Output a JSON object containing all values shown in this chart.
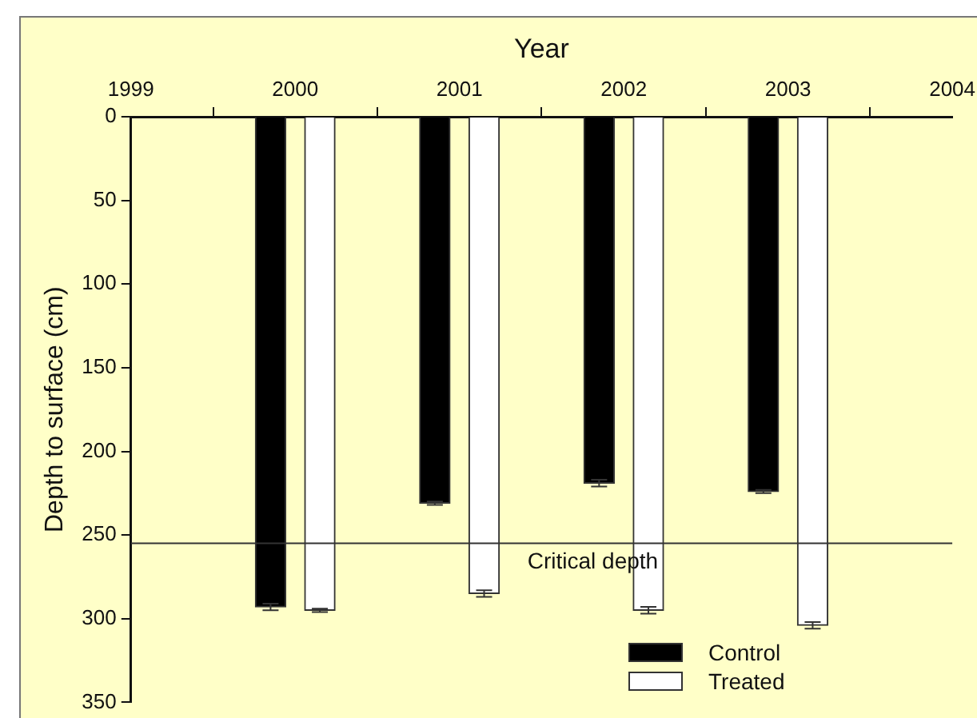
{
  "chart_data": {
    "type": "bar",
    "xlabel": "Year",
    "ylabel": "Depth to surface (cm)",
    "xlim": [
      1999,
      2004
    ],
    "xticks": [
      1999,
      2000,
      2001,
      2002,
      2003,
      2004
    ],
    "ylim": [
      350,
      0
    ],
    "yticks": [
      0,
      50,
      100,
      150,
      200,
      250,
      300,
      350
    ],
    "series": [
      {
        "name": "Control",
        "color": "#000000",
        "x": [
          1999.85,
          2000.85,
          2001.85,
          2002.85
        ],
        "values": [
          293,
          231,
          219,
          224
        ],
        "errors": [
          2,
          1,
          2,
          1
        ]
      },
      {
        "name": "Treated",
        "color": "#ffffff",
        "x": [
          2000.15,
          2001.15,
          2002.15,
          2003.15
        ],
        "values": [
          295,
          285,
          295,
          304
        ],
        "errors": [
          1,
          2,
          2,
          2
        ]
      }
    ],
    "ref_lines": [
      {
        "axis": "y",
        "value": 255,
        "label": "Critical depth"
      }
    ],
    "grid": false,
    "legend": "bottom right"
  }
}
